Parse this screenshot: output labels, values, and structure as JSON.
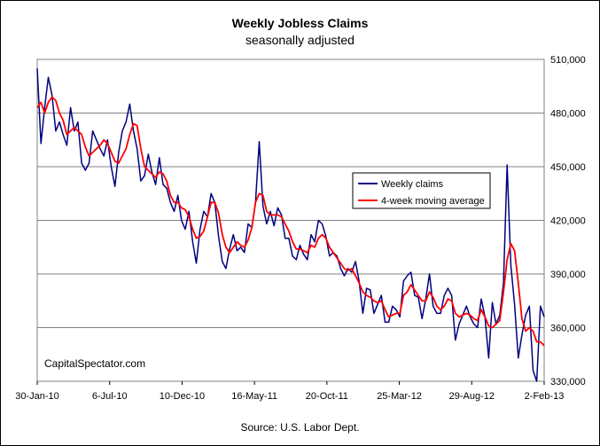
{
  "chart_data": {
    "type": "line",
    "title": "Weekly Jobless Claims",
    "subtitle": "seasonally adjusted",
    "source": "Source: U.S. Labor Dept.",
    "watermark": "CapitalSpectator.com",
    "xlabel": "",
    "ylabel": "",
    "x_tick_labels": [
      "30-Jan-10",
      "6-Jul-10",
      "10-Dec-10",
      "16-May-11",
      "20-Oct-11",
      "25-Mar-12",
      "29-Aug-12",
      "2-Feb-13"
    ],
    "y_tick_labels": [
      "330,000",
      "360,000",
      "390,000",
      "420,000",
      "450,000",
      "480,000",
      "510,000"
    ],
    "ylim": [
      330000,
      510000
    ],
    "grid": "horizontal",
    "legend_position": "upper-right",
    "series": [
      {
        "name": "Weekly claims",
        "color": "#000080",
        "values": [
          505000,
          463000,
          483000,
          500000,
          490000,
          470000,
          475000,
          468000,
          462000,
          483000,
          470000,
          475000,
          452000,
          448000,
          452000,
          470000,
          465000,
          460000,
          456000,
          465000,
          450000,
          439000,
          458000,
          470000,
          475000,
          485000,
          470000,
          460000,
          442000,
          445000,
          457000,
          447000,
          440000,
          455000,
          440000,
          438000,
          430000,
          425000,
          434000,
          420000,
          415000,
          425000,
          408000,
          396000,
          415000,
          425000,
          422000,
          435000,
          430000,
          411000,
          397000,
          393000,
          404000,
          412000,
          403000,
          405000,
          402000,
          418000,
          416000,
          430000,
          464000,
          428000,
          418000,
          425000,
          417000,
          427000,
          423000,
          410000,
          410000,
          400000,
          398000,
          406000,
          401000,
          398000,
          412000,
          408000,
          420000,
          418000,
          411000,
          400000,
          402000,
          400000,
          393000,
          389000,
          393000,
          391000,
          397000,
          386000,
          368000,
          382000,
          381000,
          368000,
          373000,
          378000,
          363000,
          363000,
          372000,
          370000,
          366000,
          386000,
          389000,
          391000,
          378000,
          377000,
          365000,
          376000,
          390000,
          372000,
          368000,
          368000,
          378000,
          382000,
          378000,
          353000,
          362000,
          367000,
          372000,
          366000,
          362000,
          360000,
          376000,
          366000,
          343000,
          374000,
          362000,
          367000,
          385000,
          451000,
          395000,
          373000,
          343000,
          356000,
          367000,
          372000,
          336000,
          330000,
          372000,
          366000
        ]
      },
      {
        "name": "4-week moving average",
        "color": "#ff0000",
        "values": [
          483000,
          486000,
          480000,
          486000,
          489000,
          487000,
          480000,
          476000,
          468000,
          470000,
          472000,
          470000,
          468000,
          461000,
          456000,
          458000,
          460000,
          462000,
          465000,
          463000,
          458000,
          453000,
          452000,
          456000,
          460000,
          468000,
          474000,
          473000,
          460000,
          450000,
          448000,
          446000,
          444000,
          447000,
          446000,
          442000,
          434000,
          430000,
          430000,
          427000,
          426000,
          422000,
          415000,
          410000,
          411000,
          414000,
          422000,
          430000,
          430000,
          424000,
          412000,
          405000,
          402000,
          405000,
          408000,
          406000,
          405000,
          409000,
          416000,
          430000,
          435000,
          434000,
          425000,
          423000,
          423000,
          423000,
          422000,
          418000,
          414000,
          408000,
          404000,
          404000,
          403000,
          402000,
          406000,
          405000,
          410000,
          412000,
          410000,
          405000,
          402000,
          399000,
          396000,
          393000,
          392000,
          393000,
          389000,
          385000,
          380000,
          378000,
          377000,
          375000,
          374000,
          375000,
          370000,
          366000,
          367000,
          368000,
          368000,
          378000,
          380000,
          384000,
          381000,
          378000,
          375000,
          375000,
          380000,
          377000,
          372000,
          370000,
          372000,
          376000,
          375000,
          368000,
          366000,
          367000,
          368000,
          367000,
          365000,
          364000,
          370000,
          366000,
          361000,
          360000,
          362000,
          364000,
          380000,
          398000,
          407000,
          403000,
          385000,
          365000,
          358000,
          360000,
          358000,
          352000,
          352000,
          350000
        ]
      }
    ]
  }
}
